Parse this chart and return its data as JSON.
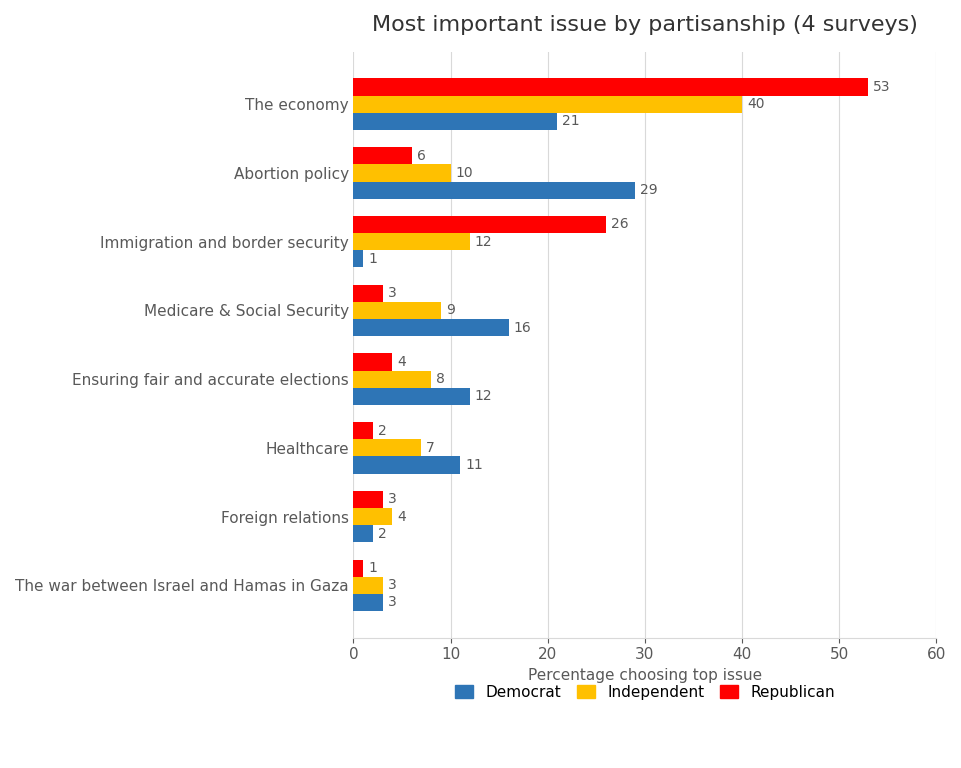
{
  "title": "Most important issue by partisanship (4 surveys)",
  "categories": [
    "The economy",
    "Abortion policy",
    "Immigration and border security",
    "Medicare & Social Security",
    "Ensuring fair and accurate elections",
    "Healthcare",
    "Foreign relations",
    "The war between Israel and Hamas in Gaza"
  ],
  "series": {
    "Democrat": [
      21,
      29,
      1,
      16,
      12,
      11,
      2,
      3
    ],
    "Independent": [
      40,
      10,
      12,
      9,
      8,
      7,
      4,
      3
    ],
    "Republican": [
      53,
      6,
      26,
      3,
      4,
      2,
      3,
      1
    ]
  },
  "colors": {
    "Democrat": "#2E75B6",
    "Independent": "#FFC000",
    "Republican": "#FF0000"
  },
  "xlabel": "Percentage choosing top issue",
  "xlim": [
    0,
    60
  ],
  "xticks": [
    0,
    10,
    20,
    30,
    40,
    50,
    60
  ],
  "background_color": "#FFFFFF",
  "bar_height": 0.25,
  "title_fontsize": 16,
  "label_fontsize": 11,
  "tick_fontsize": 11,
  "value_fontsize": 10
}
